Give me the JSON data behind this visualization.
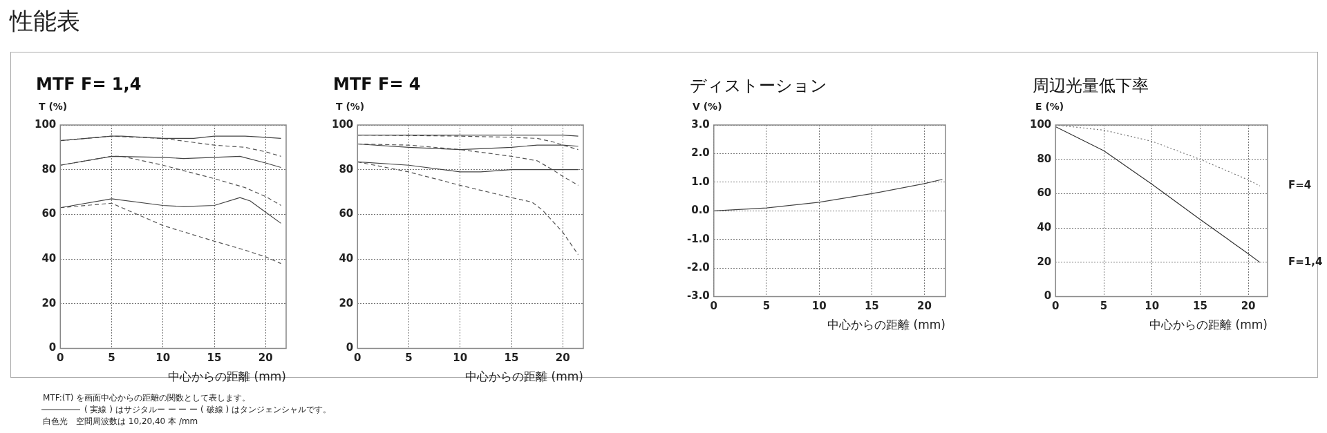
{
  "chart_data": [
    {
      "type": "other",
      "title": "性能表"
    },
    {
      "type": "line",
      "title": "MTF F= 1,4",
      "ylabel": "T (%)",
      "xlabel": "中心からの距離 (mm)",
      "xlim": [
        0,
        22
      ],
      "xticks": [
        0,
        5,
        10,
        15,
        20
      ],
      "ylim": [
        0,
        100
      ],
      "yticks": [
        0,
        20,
        40,
        60,
        80,
        100
      ],
      "grid": true,
      "series": [
        {
          "color": "#444444",
          "line_style": "solid",
          "x": [
            0,
            5,
            6,
            10,
            13,
            15,
            18,
            20,
            21.5
          ],
          "values": [
            93,
            95,
            95,
            94,
            94,
            95,
            95,
            94.5,
            94
          ]
        },
        {
          "color": "#555555",
          "line_style": "dashed",
          "x": [
            0,
            5,
            10,
            15,
            18,
            20,
            21.5
          ],
          "values": [
            93,
            95,
            94,
            91,
            90,
            88,
            86
          ]
        },
        {
          "color": "#444444",
          "line_style": "solid",
          "x": [
            0,
            5,
            10,
            12,
            15,
            17.5,
            20,
            21.5
          ],
          "values": [
            82,
            86,
            85.5,
            85,
            85.5,
            86,
            83,
            81
          ]
        },
        {
          "color": "#555555",
          "line_style": "dashed",
          "x": [
            0,
            5,
            6,
            10,
            15,
            18,
            20,
            21.5
          ],
          "values": [
            82,
            86,
            86,
            82,
            76,
            72,
            68,
            64
          ]
        },
        {
          "color": "#444444",
          "line_style": "solid",
          "x": [
            0,
            5,
            10,
            12,
            15,
            17.5,
            18.5,
            20,
            21.5
          ],
          "values": [
            63,
            67,
            64,
            63.5,
            64,
            67.5,
            66,
            61,
            56
          ]
        },
        {
          "color": "#555555",
          "line_style": "dashed",
          "x": [
            0,
            5,
            10,
            15,
            18,
            20,
            21.5
          ],
          "values": [
            63,
            65,
            55,
            48,
            44,
            41,
            38
          ]
        }
      ]
    },
    {
      "type": "line",
      "title": "MTF F= 4",
      "ylabel": "T (%)",
      "xlabel": "中心からの距離 (mm)",
      "xlim": [
        0,
        22
      ],
      "xticks": [
        0,
        5,
        10,
        15,
        20
      ],
      "ylim": [
        0,
        100
      ],
      "yticks": [
        0,
        20,
        40,
        60,
        80,
        100
      ],
      "grid": true,
      "series": [
        {
          "color": "#444444",
          "line_style": "solid",
          "x": [
            0,
            10,
            20,
            21.5
          ],
          "values": [
            95.5,
            95.5,
            95.5,
            95
          ]
        },
        {
          "color": "#555555",
          "line_style": "dashed",
          "x": [
            0,
            5,
            10,
            15,
            17.5,
            19,
            20,
            21.5
          ],
          "values": [
            95.5,
            95.3,
            95,
            94.5,
            94,
            92.5,
            91,
            89
          ]
        },
        {
          "color": "#444444",
          "line_style": "solid",
          "x": [
            0,
            5,
            10,
            15,
            17.5,
            20,
            21.5
          ],
          "values": [
            91.5,
            90,
            89,
            90,
            91,
            91,
            90.5
          ]
        },
        {
          "color": "#555555",
          "line_style": "dashed",
          "x": [
            0,
            5,
            10,
            15,
            17.5,
            19,
            20,
            21.5
          ],
          "values": [
            91.5,
            91,
            89,
            86,
            84,
            80,
            77,
            73
          ]
        },
        {
          "color": "#444444",
          "line_style": "solid",
          "x": [
            0,
            5,
            10,
            12,
            15,
            20,
            21.5
          ],
          "values": [
            83.5,
            82,
            79,
            79,
            80,
            80,
            80
          ]
        },
        {
          "color": "#555555",
          "line_style": "dashed",
          "x": [
            0,
            5,
            10,
            15,
            17,
            18,
            20,
            21.5
          ],
          "values": [
            83.5,
            79,
            73,
            67.5,
            65.5,
            62,
            52,
            42
          ]
        }
      ]
    },
    {
      "type": "line",
      "title": "ディストーション",
      "ylabel": "V (%)",
      "xlabel": "中心からの距離 (mm)",
      "xlim": [
        0,
        22
      ],
      "xticks": [
        0,
        5,
        10,
        15,
        20
      ],
      "ylim": [
        -3,
        3
      ],
      "yticks": [
        {
          "value": -3,
          "label": "-3.0"
        },
        {
          "value": -2,
          "label": "-2.0"
        },
        {
          "value": -1,
          "label": "-1.0"
        },
        {
          "value": 0,
          "label": "0.0"
        },
        {
          "value": 1,
          "label": "1.0"
        },
        {
          "value": 2,
          "label": "2.0"
        },
        {
          "value": 3,
          "label": "3.0"
        }
      ],
      "grid": true,
      "series": [
        {
          "color": "#444444",
          "line_style": "solid",
          "x": [
            0,
            5,
            10,
            15,
            20,
            21.7
          ],
          "values": [
            0,
            0.1,
            0.3,
            0.6,
            0.95,
            1.1
          ]
        }
      ]
    },
    {
      "type": "line",
      "title": "周辺光量低下率",
      "ylabel": "E (%)",
      "xlabel": "中心からの距離 (mm)",
      "xlim": [
        0,
        22
      ],
      "xticks": [
        0,
        5,
        10,
        15,
        20
      ],
      "ylim": [
        0,
        100
      ],
      "yticks": [
        0,
        20,
        40,
        60,
        80,
        100
      ],
      "grid": true,
      "series": [
        {
          "name": "F=4",
          "color": "#777777",
          "line_style": "dotted",
          "x": [
            0,
            5,
            10,
            15,
            20,
            21.2
          ],
          "values": [
            100,
            97,
            90.5,
            80,
            68,
            64.5
          ]
        },
        {
          "name": "F=1,4",
          "color": "#333333",
          "line_style": "solid",
          "x": [
            0,
            5,
            10,
            15,
            20,
            21.2
          ],
          "values": [
            99,
            85,
            65.5,
            45,
            25,
            20
          ]
        }
      ]
    },
    {
      "type": "other",
      "annotations": [
        "MTF:(T) を画面中心からの距離の関数として表します。",
        "( 実線 ) はサジタルー ー ー ー ( 破線 ) はタンジェンシャルです。",
        "白色光　空間周波数は 10,20,40 本 /mm"
      ]
    }
  ]
}
